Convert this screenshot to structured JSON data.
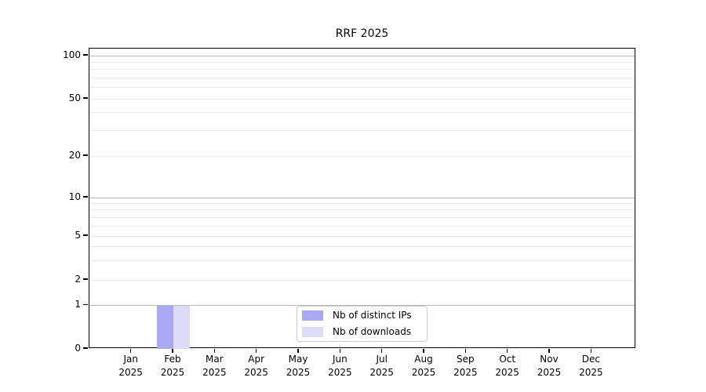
{
  "chart_data": {
    "type": "bar",
    "title": "RRF 2025",
    "categories": [
      {
        "month": "Jan",
        "year": "2025"
      },
      {
        "month": "Feb",
        "year": "2025"
      },
      {
        "month": "Mar",
        "year": "2025"
      },
      {
        "month": "Apr",
        "year": "2025"
      },
      {
        "month": "May",
        "year": "2025"
      },
      {
        "month": "Jun",
        "year": "2025"
      },
      {
        "month": "Jul",
        "year": "2025"
      },
      {
        "month": "Aug",
        "year": "2025"
      },
      {
        "month": "Sep",
        "year": "2025"
      },
      {
        "month": "Oct",
        "year": "2025"
      },
      {
        "month": "Nov",
        "year": "2025"
      },
      {
        "month": "Dec",
        "year": "2025"
      }
    ],
    "series": [
      {
        "name": "Nb of distinct IPs",
        "color": "#a8a8f5",
        "values": [
          0,
          1,
          0,
          0,
          0,
          0,
          0,
          0,
          0,
          0,
          0,
          0
        ]
      },
      {
        "name": "Nb of downloads",
        "color": "#dcdcf8",
        "values": [
          0,
          1,
          0,
          0,
          0,
          0,
          0,
          0,
          0,
          0,
          0,
          0
        ]
      }
    ],
    "y_axis": {
      "scale": "symlog",
      "major_ticks": [
        0,
        1,
        2,
        5,
        10,
        20,
        50,
        100
      ],
      "minor_gridline_values": [
        3,
        4,
        6,
        7,
        8,
        9,
        30,
        40,
        60,
        70,
        80,
        90
      ],
      "ylim": [
        0,
        110
      ]
    },
    "legend": {
      "position": "lower-center"
    },
    "grid": {
      "horizontal": true,
      "vertical": false
    }
  },
  "colors": {
    "background": "#ffffff",
    "axis": "#000000",
    "grid_power10": "#b9b9b9",
    "grid_light": "#e9e9e9",
    "legend_border": "#cccccc",
    "text": "#000000"
  }
}
